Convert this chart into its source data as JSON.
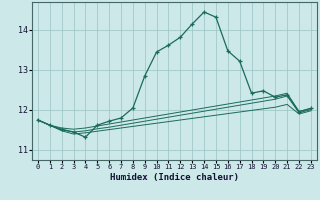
{
  "xlabel": "Humidex (Indice chaleur)",
  "bg_color": "#cce8e8",
  "grid_color": "#a0c8c8",
  "line_color": "#1a6b5a",
  "xlim": [
    -0.5,
    23.5
  ],
  "ylim": [
    10.75,
    14.7
  ],
  "yticks": [
    11,
    12,
    13,
    14
  ],
  "xticks": [
    0,
    1,
    2,
    3,
    4,
    5,
    6,
    7,
    8,
    9,
    10,
    11,
    12,
    13,
    14,
    15,
    16,
    17,
    18,
    19,
    20,
    21,
    22,
    23
  ],
  "series": [
    {
      "x": [
        0,
        1,
        2,
        3,
        4,
        5,
        6,
        7,
        8,
        9,
        10,
        11,
        12,
        13,
        14,
        15,
        16,
        17,
        18,
        19,
        20,
        21,
        22,
        23
      ],
      "y": [
        11.75,
        11.62,
        11.52,
        11.45,
        11.32,
        11.62,
        11.72,
        11.8,
        12.05,
        12.85,
        13.45,
        13.62,
        13.82,
        14.15,
        14.45,
        14.32,
        13.48,
        13.22,
        12.42,
        12.48,
        12.32,
        12.38,
        11.96,
        12.04
      ]
    },
    {
      "x": [
        0,
        1,
        2,
        3,
        4,
        5,
        6,
        7,
        8,
        9,
        10,
        11,
        12,
        13,
        14,
        15,
        16,
        17,
        18,
        19,
        20,
        21,
        22,
        23
      ],
      "y": [
        11.75,
        11.62,
        11.55,
        11.52,
        11.55,
        11.6,
        11.65,
        11.7,
        11.75,
        11.8,
        11.85,
        11.9,
        11.95,
        12.0,
        12.05,
        12.1,
        12.15,
        12.2,
        12.25,
        12.3,
        12.35,
        12.42,
        11.96,
        12.04
      ]
    },
    {
      "x": [
        0,
        1,
        2,
        3,
        4,
        5,
        6,
        7,
        8,
        9,
        10,
        11,
        12,
        13,
        14,
        15,
        16,
        17,
        18,
        19,
        20,
        21,
        22,
        23
      ],
      "y": [
        11.75,
        11.62,
        11.5,
        11.45,
        11.48,
        11.53,
        11.57,
        11.62,
        11.67,
        11.72,
        11.77,
        11.82,
        11.87,
        11.92,
        11.97,
        12.02,
        12.07,
        12.12,
        12.17,
        12.22,
        12.27,
        12.35,
        11.93,
        12.01
      ]
    },
    {
      "x": [
        0,
        1,
        2,
        3,
        4,
        5,
        6,
        7,
        8,
        9,
        10,
        11,
        12,
        13,
        14,
        15,
        16,
        17,
        18,
        19,
        20,
        21,
        22,
        23
      ],
      "y": [
        11.75,
        11.62,
        11.48,
        11.4,
        11.43,
        11.47,
        11.51,
        11.55,
        11.59,
        11.63,
        11.67,
        11.71,
        11.75,
        11.79,
        11.83,
        11.87,
        11.91,
        11.95,
        11.99,
        12.03,
        12.07,
        12.14,
        11.9,
        11.98
      ]
    }
  ]
}
